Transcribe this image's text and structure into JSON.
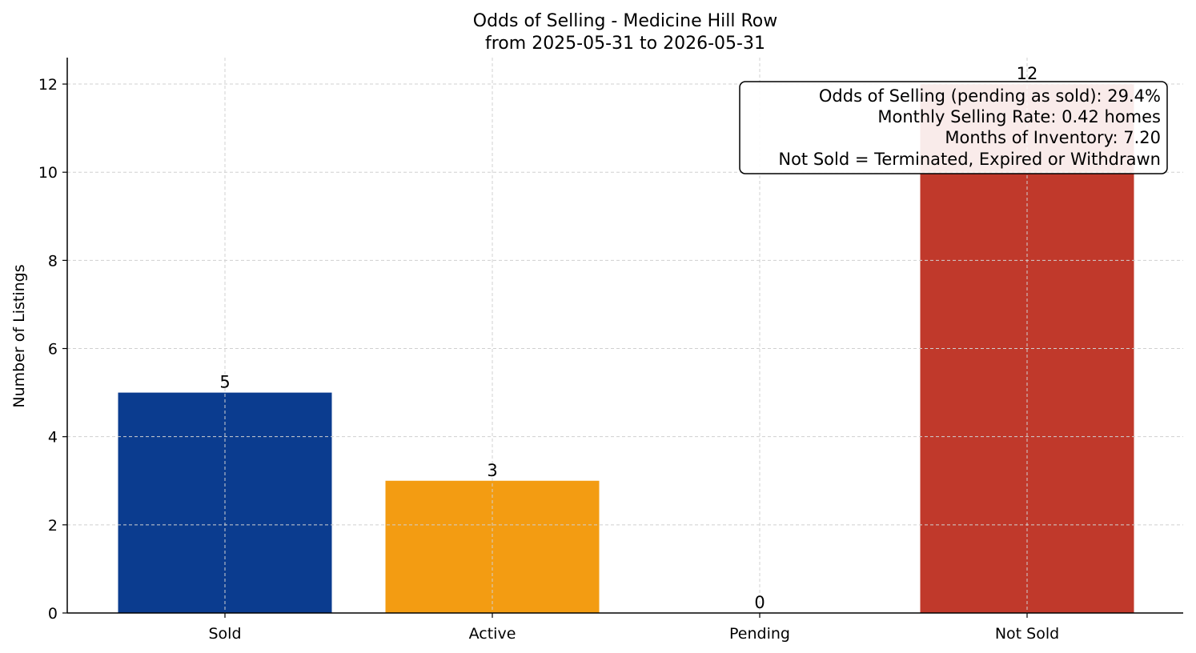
{
  "chart_data": {
    "type": "bar",
    "title": "Odds of Selling - Medicine Hill Row",
    "subtitle": "from 2025-05-31 to 2026-05-31",
    "xlabel": "",
    "ylabel": "Number of Listings",
    "categories": [
      "Sold",
      "Active",
      "Pending",
      "Not Sold"
    ],
    "values": [
      5,
      3,
      0,
      12
    ],
    "colors": [
      "#0b3c8f",
      "#f39c12",
      "#2ca02c",
      "#c0392b"
    ],
    "ylim": [
      0,
      12.6
    ],
    "yticks": [
      0,
      2,
      4,
      6,
      8,
      10,
      12
    ],
    "grid": true,
    "annotation": {
      "lines": [
        "Odds of Selling (pending as sold): 29.4%",
        "Monthly Selling Rate: 0.42 homes",
        "Months of Inventory: 7.20",
        "Not Sold = Terminated, Expired or Withdrawn"
      ],
      "placement": "top-right"
    }
  }
}
